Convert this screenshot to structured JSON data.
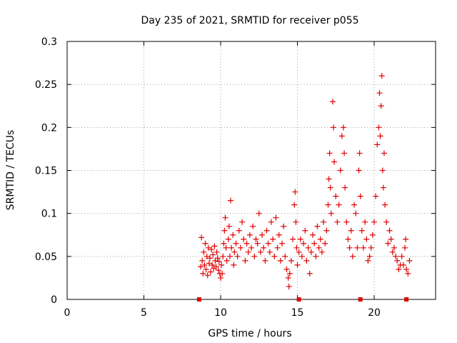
{
  "chart_data": {
    "type": "scatter",
    "title": "Day 235 of 2021, SRMTID for receiver p055",
    "xlabel": "GPS time / hours",
    "ylabel": "SRMTID / TECUs",
    "xlim": [
      0,
      24
    ],
    "ylim": [
      0,
      0.3
    ],
    "xticks": [
      0,
      5,
      10,
      15,
      20
    ],
    "xtick_labels": [
      "0",
      "5",
      "10",
      "15",
      "20"
    ],
    "yticks": [
      0,
      0.05,
      0.1,
      0.15,
      0.2,
      0.25,
      0.3
    ],
    "ytick_labels": [
      "0",
      "0.05",
      "0.1",
      "0.15",
      "0.2",
      "0.25",
      "0.3"
    ],
    "grid": true,
    "marker": "+",
    "color": "#e00000",
    "series": [
      {
        "name": "SRMTID",
        "points": [
          [
            8.7,
            0.038
          ],
          [
            8.75,
            0.072
          ],
          [
            8.8,
            0.045
          ],
          [
            8.85,
            0.03
          ],
          [
            8.9,
            0.055
          ],
          [
            8.95,
            0.04
          ],
          [
            9.0,
            0.065
          ],
          [
            9.05,
            0.035
          ],
          [
            9.1,
            0.05
          ],
          [
            9.15,
            0.028
          ],
          [
            9.2,
            0.06
          ],
          [
            9.25,
            0.042
          ],
          [
            9.3,
            0.048
          ],
          [
            9.35,
            0.032
          ],
          [
            9.4,
            0.058
          ],
          [
            9.45,
            0.04
          ],
          [
            9.5,
            0.052
          ],
          [
            9.55,
            0.036
          ],
          [
            9.6,
            0.062
          ],
          [
            9.65,
            0.045
          ],
          [
            9.7,
            0.038
          ],
          [
            9.75,
            0.055
          ],
          [
            9.8,
            0.048
          ],
          [
            9.85,
            0.034
          ],
          [
            9.9,
            0.044
          ],
          [
            9.95,
            0.03
          ],
          [
            10.0,
            0.025
          ],
          [
            10.05,
            0.04
          ],
          [
            10.1,
            0.03
          ],
          [
            10.15,
            0.05
          ],
          [
            10.2,
            0.065
          ],
          [
            10.25,
            0.08
          ],
          [
            10.3,
            0.095
          ],
          [
            10.35,
            0.06
          ],
          [
            10.4,
            0.045
          ],
          [
            10.5,
            0.07
          ],
          [
            10.55,
            0.085
          ],
          [
            10.6,
            0.05
          ],
          [
            10.65,
            0.115
          ],
          [
            10.7,
            0.06
          ],
          [
            10.8,
            0.075
          ],
          [
            10.85,
            0.04
          ],
          [
            10.9,
            0.055
          ],
          [
            11.0,
            0.065
          ],
          [
            11.1,
            0.05
          ],
          [
            11.2,
            0.08
          ],
          [
            11.3,
            0.06
          ],
          [
            11.4,
            0.09
          ],
          [
            11.5,
            0.07
          ],
          [
            11.6,
            0.045
          ],
          [
            11.7,
            0.065
          ],
          [
            11.8,
            0.055
          ],
          [
            11.9,
            0.075
          ],
          [
            12.0,
            0.06
          ],
          [
            12.1,
            0.085
          ],
          [
            12.2,
            0.05
          ],
          [
            12.3,
            0.07
          ],
          [
            12.4,
            0.065
          ],
          [
            12.5,
            0.1
          ],
          [
            12.6,
            0.055
          ],
          [
            12.7,
            0.075
          ],
          [
            12.8,
            0.06
          ],
          [
            12.9,
            0.045
          ],
          [
            13.0,
            0.08
          ],
          [
            13.1,
            0.065
          ],
          [
            13.2,
            0.055
          ],
          [
            13.3,
            0.09
          ],
          [
            13.4,
            0.07
          ],
          [
            13.5,
            0.05
          ],
          [
            13.6,
            0.095
          ],
          [
            13.7,
            0.06
          ],
          [
            13.8,
            0.075
          ],
          [
            13.9,
            0.045
          ],
          [
            14.0,
            0.065
          ],
          [
            14.1,
            0.085
          ],
          [
            14.2,
            0.05
          ],
          [
            14.3,
            0.035
          ],
          [
            14.4,
            0.025
          ],
          [
            14.45,
            0.015
          ],
          [
            14.5,
            0.03
          ],
          [
            14.6,
            0.045
          ],
          [
            14.7,
            0.07
          ],
          [
            14.8,
            0.11
          ],
          [
            14.85,
            0.125
          ],
          [
            14.9,
            0.09
          ],
          [
            14.95,
            0.06
          ],
          [
            15.0,
            0.04
          ],
          [
            15.1,
            0.055
          ],
          [
            15.2,
            0.07
          ],
          [
            15.3,
            0.05
          ],
          [
            15.4,
            0.065
          ],
          [
            15.5,
            0.08
          ],
          [
            15.6,
            0.045
          ],
          [
            15.7,
            0.06
          ],
          [
            15.8,
            0.03
          ],
          [
            15.9,
            0.055
          ],
          [
            16.0,
            0.075
          ],
          [
            16.1,
            0.065
          ],
          [
            16.2,
            0.05
          ],
          [
            16.3,
            0.085
          ],
          [
            16.4,
            0.06
          ],
          [
            16.5,
            0.07
          ],
          [
            16.6,
            0.055
          ],
          [
            16.7,
            0.09
          ],
          [
            16.8,
            0.065
          ],
          [
            16.9,
            0.08
          ],
          [
            17.0,
            0.11
          ],
          [
            17.05,
            0.14
          ],
          [
            17.1,
            0.17
          ],
          [
            17.15,
            0.13
          ],
          [
            17.2,
            0.1
          ],
          [
            17.3,
            0.23
          ],
          [
            17.35,
            0.2
          ],
          [
            17.4,
            0.16
          ],
          [
            17.5,
            0.12
          ],
          [
            17.6,
            0.09
          ],
          [
            17.7,
            0.11
          ],
          [
            17.8,
            0.15
          ],
          [
            17.9,
            0.19
          ],
          [
            18.0,
            0.2
          ],
          [
            18.05,
            0.17
          ],
          [
            18.1,
            0.13
          ],
          [
            18.2,
            0.09
          ],
          [
            18.3,
            0.07
          ],
          [
            18.4,
            0.06
          ],
          [
            18.5,
            0.08
          ],
          [
            18.6,
            0.05
          ],
          [
            18.7,
            0.11
          ],
          [
            18.8,
            0.1
          ],
          [
            18.9,
            0.06
          ],
          [
            19.0,
            0.15
          ],
          [
            19.05,
            0.17
          ],
          [
            19.1,
            0.12
          ],
          [
            19.2,
            0.08
          ],
          [
            19.3,
            0.06
          ],
          [
            19.4,
            0.09
          ],
          [
            19.5,
            0.07
          ],
          [
            19.6,
            0.045
          ],
          [
            19.7,
            0.05
          ],
          [
            19.8,
            0.06
          ],
          [
            19.9,
            0.075
          ],
          [
            20.0,
            0.09
          ],
          [
            20.1,
            0.12
          ],
          [
            20.2,
            0.18
          ],
          [
            20.3,
            0.2
          ],
          [
            20.35,
            0.24
          ],
          [
            20.4,
            0.19
          ],
          [
            20.45,
            0.225
          ],
          [
            20.5,
            0.26
          ],
          [
            20.55,
            0.15
          ],
          [
            20.6,
            0.13
          ],
          [
            20.65,
            0.17
          ],
          [
            20.7,
            0.11
          ],
          [
            20.8,
            0.09
          ],
          [
            20.9,
            0.065
          ],
          [
            21.0,
            0.08
          ],
          [
            21.1,
            0.07
          ],
          [
            21.2,
            0.055
          ],
          [
            21.3,
            0.06
          ],
          [
            21.4,
            0.05
          ],
          [
            21.5,
            0.045
          ],
          [
            21.6,
            0.035
          ],
          [
            21.7,
            0.04
          ],
          [
            21.8,
            0.05
          ],
          [
            21.9,
            0.04
          ],
          [
            22.0,
            0.06
          ],
          [
            22.05,
            0.07
          ],
          [
            22.1,
            0.035
          ],
          [
            22.2,
            0.03
          ],
          [
            22.3,
            0.045
          ]
        ]
      },
      {
        "name": "markers-at-zero",
        "points": [
          [
            8.6,
            0
          ],
          [
            15.1,
            0
          ],
          [
            19.1,
            0
          ],
          [
            22.1,
            0
          ]
        ]
      }
    ]
  }
}
